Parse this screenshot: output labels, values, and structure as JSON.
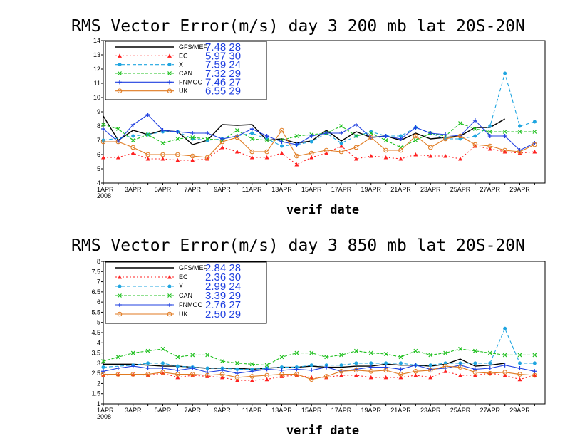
{
  "chart_data": [
    {
      "type": "line",
      "title": "RMS Vector Error(m/s) day 3  200 mb    lat 20S-20N",
      "xlabel": "verif date",
      "ylim": [
        4,
        14
      ],
      "yticks": [
        "4",
        "5",
        "6",
        "7",
        "8",
        "9",
        "10",
        "11",
        "12",
        "13",
        "14"
      ],
      "xticks": [
        "1APR\n2008",
        "3APR",
        "5APR",
        "7APR",
        "9APR",
        "11APR",
        "13APR",
        "15APR",
        "17APR",
        "19APR",
        "21APR",
        "23APR",
        "25APR",
        "27APR",
        "29APR"
      ],
      "x_day_range": [
        1,
        30
      ],
      "legend": [
        {
          "name": "GFS/MEF",
          "stats": "7.48  28",
          "color": "#000000",
          "marker": "none",
          "dash": ""
        },
        {
          "name": "EC",
          "stats": "5.97  30",
          "color": "#ff2020",
          "marker": "triangle",
          "dash": "2,3"
        },
        {
          "name": "X",
          "stats": "7.59  24",
          "color": "#1fa5e0",
          "marker": "circle",
          "dash": "5,3"
        },
        {
          "name": "CAN",
          "stats": "7.32  29",
          "color": "#20c020",
          "marker": "cross",
          "dash": "4,2"
        },
        {
          "name": "FNMOC",
          "stats": "7.46  27",
          "color": "#2040e0",
          "marker": "plus",
          "dash": ""
        },
        {
          "name": "UK",
          "stats": "6.55  29",
          "color": "#e07a20",
          "marker": "opencircle",
          "dash": ""
        }
      ],
      "series": [
        {
          "name": "GFS/MEF",
          "x": [
            1,
            2,
            3,
            4,
            5,
            6,
            7,
            8,
            9,
            10,
            11,
            12,
            13,
            14,
            15,
            16,
            17,
            18,
            19,
            20,
            21,
            22,
            23,
            24,
            25,
            26,
            27,
            28
          ],
          "values": [
            8.7,
            7.0,
            7.7,
            7.4,
            7.7,
            7.6,
            6.7,
            7.0,
            8.1,
            8.05,
            8.1,
            7.0,
            7.1,
            6.8,
            6.95,
            7.7,
            6.95,
            7.6,
            7.2,
            7.3,
            7.0,
            7.5,
            7.1,
            7.2,
            7.3,
            7.9,
            7.9,
            8.5
          ]
        },
        {
          "name": "EC",
          "x": [
            1,
            2,
            3,
            4,
            5,
            6,
            7,
            8,
            9,
            10,
            11,
            12,
            13,
            14,
            15,
            16,
            17,
            18,
            19,
            20,
            21,
            22,
            23,
            24,
            25,
            26,
            27,
            28,
            29,
            30
          ],
          "values": [
            5.8,
            5.8,
            6.1,
            5.7,
            5.7,
            5.6,
            5.6,
            5.7,
            6.5,
            6.2,
            5.8,
            5.8,
            6.1,
            5.3,
            5.8,
            6.1,
            6.6,
            5.7,
            5.9,
            5.8,
            5.7,
            6.0,
            5.9,
            5.9,
            5.7,
            6.6,
            6.4,
            6.2,
            6.1,
            6.2
          ]
        },
        {
          "name": "X",
          "x": [
            1,
            3,
            4,
            5,
            6,
            7,
            8,
            9,
            10,
            11,
            12,
            13,
            14,
            15,
            16,
            17,
            18,
            19,
            20,
            21,
            22,
            23,
            24,
            25,
            26,
            27,
            28,
            29,
            30
          ],
          "values": [
            7.0,
            7.3,
            7.4,
            7.6,
            7.6,
            7.1,
            7.0,
            7.1,
            7.3,
            7.5,
            7.1,
            6.6,
            6.7,
            6.9,
            7.5,
            6.8,
            7.3,
            7.6,
            7.3,
            7.3,
            7.9,
            7.5,
            7.1,
            7.1,
            7.3,
            8.0,
            11.7,
            8.0,
            8.3
          ]
        },
        {
          "name": "CAN",
          "x": [
            1,
            2,
            3,
            4,
            5,
            6,
            7,
            8,
            9,
            10,
            11,
            12,
            13,
            14,
            15,
            16,
            17,
            18,
            19,
            20,
            21,
            22,
            23,
            24,
            25,
            26,
            27,
            28,
            29,
            30
          ],
          "values": [
            8.1,
            7.8,
            7.0,
            7.4,
            6.8,
            7.1,
            7.2,
            7.1,
            7.0,
            7.7,
            7.1,
            7.0,
            7.0,
            7.3,
            7.4,
            7.5,
            8.0,
            7.3,
            7.5,
            7.0,
            6.5,
            7.0,
            7.5,
            7.3,
            8.2,
            7.8,
            7.6,
            7.6,
            7.6,
            7.6
          ]
        },
        {
          "name": "FNMOC",
          "x": [
            1,
            2,
            3,
            4,
            5,
            6,
            7,
            8,
            9,
            10,
            11,
            12,
            13,
            14,
            15,
            16,
            17,
            18,
            19,
            20,
            21,
            22,
            23,
            24,
            25,
            26,
            27,
            28,
            29,
            30
          ],
          "values": [
            7.8,
            6.9,
            8.1,
            8.8,
            7.7,
            7.6,
            7.5,
            7.5,
            7.1,
            7.3,
            7.8,
            7.3,
            6.9,
            6.7,
            7.3,
            7.5,
            7.5,
            8.1,
            7.2,
            7.3,
            7.1,
            7.9,
            7.5,
            7.4,
            7.3,
            8.4,
            7.3,
            7.3,
            6.3,
            6.8
          ]
        },
        {
          "name": "UK",
          "x": [
            1,
            2,
            3,
            4,
            5,
            6,
            7,
            8,
            9,
            10,
            11,
            12,
            13,
            14,
            15,
            16,
            17,
            18,
            19,
            20,
            21,
            22,
            23,
            24,
            25,
            26,
            27,
            28,
            29,
            30
          ],
          "values": [
            6.9,
            6.9,
            6.5,
            6.0,
            6.0,
            6.0,
            5.9,
            5.8,
            6.9,
            7.2,
            6.2,
            6.2,
            7.7,
            5.9,
            6.1,
            6.3,
            6.2,
            6.5,
            7.2,
            6.3,
            6.3,
            7.3,
            6.5,
            7.1,
            7.3,
            6.7,
            6.6,
            6.3,
            6.2,
            6.7
          ]
        }
      ]
    },
    {
      "type": "line",
      "title": "RMS Vector Error(m/s) day 3  850 mb    lat 20S-20N",
      "xlabel": "verif date",
      "ylim": [
        1,
        8
      ],
      "yticks": [
        "1",
        "1.5",
        "2",
        "2.5",
        "3",
        "3.5",
        "4",
        "4.5",
        "5",
        "5.5",
        "6",
        "6.5",
        "7",
        "7.5",
        "8"
      ],
      "xticks": [
        "1APR\n2008",
        "3APR",
        "5APR",
        "7APR",
        "9APR",
        "11APR",
        "13APR",
        "15APR",
        "17APR",
        "19APR",
        "21APR",
        "23APR",
        "25APR",
        "27APR",
        "29APR"
      ],
      "x_day_range": [
        1,
        30
      ],
      "legend": [
        {
          "name": "GFS/MEF",
          "stats": "2.84  28",
          "color": "#000000",
          "marker": "none",
          "dash": ""
        },
        {
          "name": "EC",
          "stats": "2.36  30",
          "color": "#ff2020",
          "marker": "triangle",
          "dash": "2,3"
        },
        {
          "name": "X",
          "stats": "2.99  24",
          "color": "#1fa5e0",
          "marker": "circle",
          "dash": "5,3"
        },
        {
          "name": "CAN",
          "stats": "3.39  29",
          "color": "#20c020",
          "marker": "cross",
          "dash": "4,2"
        },
        {
          "name": "FNMOC",
          "stats": "2.76  27",
          "color": "#2040e0",
          "marker": "plus",
          "dash": ""
        },
        {
          "name": "UK",
          "stats": "2.50  29",
          "color": "#e07a20",
          "marker": "opencircle",
          "dash": ""
        }
      ],
      "series": [
        {
          "name": "GFS/MEF",
          "x": [
            1,
            2,
            3,
            4,
            5,
            6,
            7,
            8,
            9,
            10,
            11,
            12,
            13,
            14,
            15,
            16,
            17,
            18,
            19,
            20,
            21,
            22,
            23,
            24,
            25,
            26,
            27,
            28
          ],
          "values": [
            2.95,
            2.95,
            2.95,
            2.9,
            2.85,
            2.85,
            2.8,
            2.75,
            2.75,
            2.75,
            2.7,
            2.75,
            2.8,
            2.8,
            2.85,
            2.8,
            2.8,
            2.85,
            2.85,
            2.95,
            2.9,
            2.9,
            2.85,
            2.95,
            3.2,
            2.85,
            2.9,
            3.0
          ]
        },
        {
          "name": "EC",
          "x": [
            1,
            2,
            3,
            4,
            5,
            6,
            7,
            8,
            9,
            10,
            11,
            12,
            13,
            14,
            15,
            16,
            17,
            18,
            19,
            20,
            21,
            22,
            23,
            24,
            25,
            26,
            27,
            28,
            29,
            30
          ],
          "values": [
            2.4,
            2.45,
            2.45,
            2.4,
            2.5,
            2.3,
            2.4,
            2.35,
            2.3,
            2.15,
            2.15,
            2.2,
            2.35,
            2.4,
            2.3,
            2.3,
            2.4,
            2.4,
            2.3,
            2.3,
            2.3,
            2.4,
            2.3,
            2.6,
            2.4,
            2.4,
            2.5,
            2.4,
            2.2,
            2.4
          ]
        },
        {
          "name": "X",
          "x": [
            1,
            3,
            4,
            5,
            6,
            7,
            8,
            9,
            10,
            11,
            12,
            13,
            14,
            15,
            16,
            17,
            18,
            19,
            20,
            21,
            22,
            23,
            24,
            25,
            26,
            27,
            28,
            29,
            30
          ],
          "values": [
            2.8,
            2.9,
            3.0,
            3.0,
            2.85,
            2.8,
            2.75,
            2.75,
            2.7,
            2.7,
            2.75,
            2.8,
            2.8,
            2.9,
            2.9,
            2.9,
            3.0,
            3.0,
            3.0,
            3.0,
            2.9,
            2.9,
            3.0,
            3.0,
            3.0,
            3.0,
            4.7,
            3.0,
            3.0
          ]
        },
        {
          "name": "CAN",
          "x": [
            1,
            2,
            3,
            4,
            5,
            6,
            7,
            8,
            9,
            10,
            11,
            12,
            13,
            14,
            15,
            16,
            17,
            18,
            19,
            20,
            21,
            22,
            23,
            24,
            25,
            26,
            27,
            28,
            29,
            30
          ],
          "values": [
            3.1,
            3.3,
            3.5,
            3.6,
            3.7,
            3.3,
            3.4,
            3.4,
            3.1,
            3.0,
            2.95,
            2.9,
            3.3,
            3.5,
            3.5,
            3.3,
            3.4,
            3.6,
            3.5,
            3.45,
            3.3,
            3.6,
            3.4,
            3.5,
            3.7,
            3.6,
            3.5,
            3.4,
            3.4,
            3.4
          ]
        },
        {
          "name": "FNMOC",
          "x": [
            1,
            2,
            3,
            4,
            5,
            6,
            7,
            8,
            9,
            10,
            11,
            12,
            13,
            14,
            15,
            16,
            17,
            18,
            19,
            20,
            21,
            22,
            23,
            24,
            25,
            26,
            27,
            28,
            29,
            30
          ],
          "values": [
            2.6,
            2.75,
            2.85,
            2.75,
            2.75,
            2.65,
            2.75,
            2.55,
            2.65,
            2.5,
            2.6,
            2.7,
            2.65,
            2.7,
            2.65,
            2.8,
            2.6,
            2.7,
            2.8,
            2.8,
            2.7,
            2.9,
            2.7,
            2.75,
            2.9,
            2.7,
            2.75,
            2.9,
            2.75,
            2.6
          ]
        },
        {
          "name": "UK",
          "x": [
            1,
            2,
            3,
            4,
            5,
            6,
            7,
            8,
            9,
            10,
            11,
            12,
            13,
            14,
            15,
            16,
            17,
            18,
            19,
            20,
            21,
            22,
            23,
            24,
            25,
            26,
            27,
            28,
            29,
            30
          ],
          "values": [
            2.45,
            2.45,
            2.45,
            2.45,
            2.55,
            2.45,
            2.45,
            2.4,
            2.45,
            2.3,
            2.35,
            2.4,
            2.45,
            2.45,
            2.2,
            2.35,
            2.6,
            2.65,
            2.6,
            2.65,
            2.45,
            2.6,
            2.65,
            2.85,
            2.8,
            2.55,
            2.5,
            2.55,
            2.45,
            2.4
          ]
        }
      ]
    }
  ]
}
